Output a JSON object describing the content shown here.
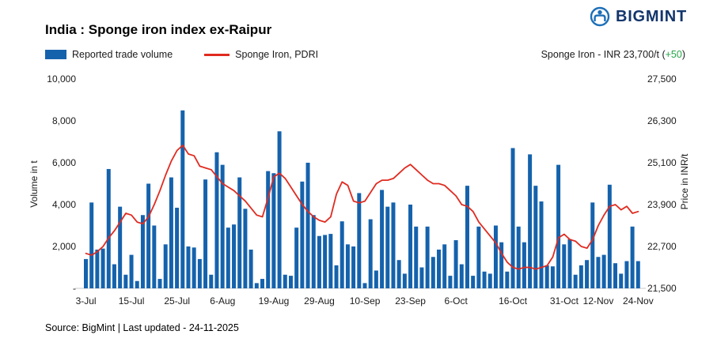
{
  "header": {
    "title": "India : Sponge iron index ex-Raipur",
    "brand": "BIGMINT"
  },
  "legend": {
    "volume_label": "Reported trade volume",
    "price_label": "Sponge Iron, PDRI"
  },
  "price_ticker": {
    "prefix": "Sponge Iron - INR 23,700/t (",
    "change": "+50",
    "suffix": ")"
  },
  "footer": {
    "source": "Source: BigMint | Last updated - 24-11-2025"
  },
  "chart_data": {
    "type": "bar+line",
    "title": "India : Sponge iron index ex-Raipur",
    "x_tick_labels": [
      "3-Jul",
      "15-Jul",
      "25-Jul",
      "6-Aug",
      "19-Aug",
      "29-Aug",
      "10-Sep",
      "23-Sep",
      "6-Oct",
      "16-Oct",
      "31-Oct",
      "12-Nov",
      "24-Nov"
    ],
    "x_tick_indices": [
      0,
      8,
      16,
      24,
      33,
      41,
      49,
      57,
      65,
      75,
      84,
      90,
      97
    ],
    "left_axis": {
      "label": "Volume in t",
      "min": 0,
      "max": 10000,
      "ticks": [
        0,
        2000,
        4000,
        6000,
        8000,
        10000
      ],
      "tick_labels": [
        "-",
        "2,000",
        "4,000",
        "6,000",
        "8,000",
        "10,000"
      ]
    },
    "right_axis": {
      "label": "Price in INR/t",
      "min": 21500,
      "max": 27500,
      "ticks": [
        21500,
        22700,
        23900,
        25100,
        26300,
        27500
      ],
      "tick_labels": [
        "21,500",
        "22,700",
        "23,900",
        "25,100",
        "26,300",
        "27,500"
      ]
    },
    "series": [
      {
        "name": "Reported trade volume",
        "type": "bar",
        "axis": "left",
        "values": [
          1400,
          4100,
          1850,
          1900,
          5700,
          1150,
          3900,
          650,
          1600,
          350,
          3500,
          5000,
          3000,
          450,
          2100,
          5300,
          3850,
          8500,
          2000,
          1950,
          1400,
          5200,
          650,
          6500,
          5900,
          2900,
          3050,
          5300,
          3800,
          1850,
          250,
          450,
          5600,
          5500,
          7500,
          650,
          600,
          2900,
          5100,
          6000,
          3500,
          2500,
          2550,
          2600,
          1100,
          3200,
          2100,
          2000,
          4550,
          250,
          3300,
          850,
          4700,
          3900,
          4100,
          1350,
          700,
          4000,
          2950,
          1000,
          2950,
          1500,
          1850,
          2100,
          600,
          2300,
          1150,
          4900,
          600,
          2950,
          800,
          700,
          3000,
          2200,
          800,
          6700,
          2950,
          2200,
          6400,
          4900,
          4150,
          1100,
          1050,
          5900,
          2100,
          2350,
          650,
          1100,
          1350,
          4100,
          1500,
          1600,
          4950,
          1200,
          700,
          1300,
          2950,
          1300
        ]
      },
      {
        "name": "Sponge Iron, PDRI",
        "type": "line",
        "axis": "right",
        "values": [
          22500,
          22450,
          22550,
          22700,
          22950,
          23150,
          23400,
          23650,
          23600,
          23400,
          23350,
          23550,
          23900,
          24300,
          24750,
          25150,
          25450,
          25600,
          25350,
          25300,
          25000,
          24950,
          24900,
          24700,
          24500,
          24400,
          24300,
          24150,
          24000,
          23800,
          23600,
          23550,
          24100,
          24700,
          24800,
          24650,
          24400,
          24150,
          23900,
          23700,
          23550,
          23450,
          23400,
          23550,
          24200,
          24550,
          24450,
          24000,
          23950,
          24000,
          24250,
          24500,
          24600,
          24600,
          24650,
          24800,
          24950,
          25050,
          24900,
          24750,
          24600,
          24500,
          24500,
          24450,
          24300,
          24150,
          23900,
          23850,
          23700,
          23400,
          23200,
          23000,
          22800,
          22500,
          22250,
          22100,
          22050,
          22100,
          22100,
          22050,
          22100,
          22150,
          22400,
          22950,
          23050,
          22900,
          22850,
          22700,
          22650,
          22900,
          23300,
          23600,
          23850,
          23900,
          23750,
          23850,
          23650,
          23700
        ]
      }
    ],
    "colors": {
      "bar": "#1562ac",
      "line": "#e02b20",
      "positive": "#26a447",
      "brand_navy": "#12356b",
      "brand_blue": "#1d6fb8"
    },
    "latest_price_inr_per_t": 23700,
    "latest_change": 50,
    "legend_position": "top",
    "grid": false
  }
}
